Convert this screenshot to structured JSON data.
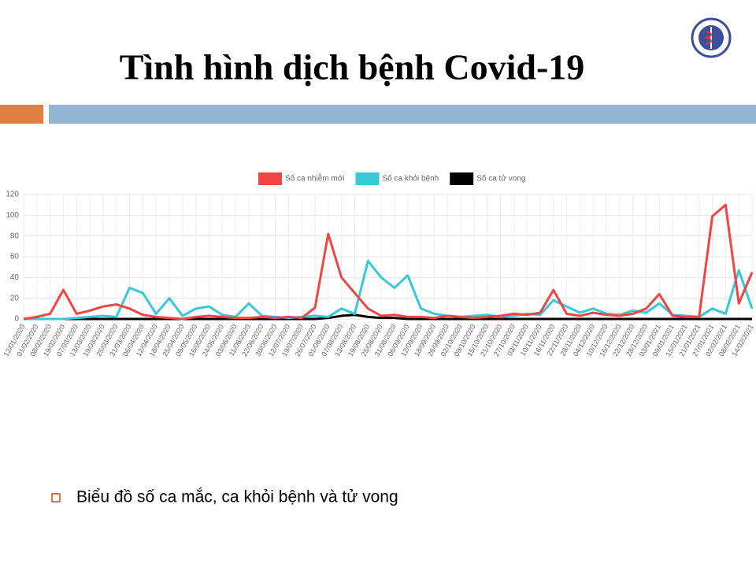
{
  "title": "Tình hình dịch bệnh Covid-19",
  "bullet": "Biểu đồ số ca mắc, ca khỏi bệnh và tử vong",
  "chart_data": {
    "type": "line",
    "categories": [
      "12/01/2020",
      "01/02/2020",
      "08/02/2020",
      "19/02/2020",
      "07/03/2020",
      "13/03/2020",
      "19/03/2020",
      "25/03/2020",
      "31/03/2020",
      "06/04/2020",
      "12/04/2020",
      "18/04/2020",
      "25/04/2020",
      "09/05/2020",
      "16/05/2020",
      "24/05/2020",
      "03/06/2020",
      "11/06/2020",
      "22/06/2020",
      "30/06/2020",
      "12/07/2020",
      "19/07/2020",
      "26/07/2020",
      "01/08/2020",
      "07/08/2020",
      "13/08/2020",
      "19/08/2020",
      "25/08/2020",
      "31/08/2020",
      "06/09/2020",
      "12/09/2020",
      "18/09/2020",
      "26/09/2020",
      "02/10/2020",
      "09/10/2020",
      "15/10/2020",
      "21/10/2020",
      "27/10/2020",
      "03/11/2020",
      "10/11/2020",
      "16/11/2020",
      "22/11/2020",
      "28/11/2020",
      "04/12/2020",
      "10/12/2020",
      "16/12/2020",
      "22/12/2020",
      "28/12/2020",
      "03/01/2021",
      "09/01/2021",
      "15/01/2021",
      "21/01/2021",
      "27/01/2021",
      "02/02/2021",
      "08/02/2021",
      "14/02/2021"
    ],
    "series": [
      {
        "name": "Số ca nhiễm mới",
        "color": "#f04545",
        "values": [
          0,
          2,
          5,
          28,
          5,
          8,
          12,
          14,
          10,
          4,
          2,
          1,
          0,
          2,
          3,
          2,
          1,
          1,
          2,
          1,
          2,
          1,
          11,
          82,
          40,
          25,
          10,
          3,
          4,
          2,
          2,
          1,
          3,
          2,
          1,
          2,
          3,
          5,
          4,
          6,
          28,
          5,
          3,
          6,
          4,
          3,
          5,
          10,
          24,
          3,
          2,
          2,
          99,
          110,
          15,
          45
        ]
      },
      {
        "name": "Số ca khỏi bệnh",
        "color": "#38c8d8",
        "values": [
          0,
          0,
          0,
          0,
          1,
          2,
          3,
          2,
          30,
          25,
          5,
          20,
          3,
          10,
          12,
          4,
          2,
          15,
          3,
          2,
          1,
          2,
          3,
          2,
          10,
          5,
          56,
          40,
          30,
          42,
          10,
          5,
          3,
          2,
          3,
          4,
          2,
          3,
          5,
          4,
          18,
          12,
          6,
          10,
          5,
          4,
          8,
          6,
          15,
          4,
          3,
          2,
          10,
          5,
          47,
          10
        ]
      },
      {
        "name": "Số ca tử vong",
        "color": "#000000",
        "values": [
          0,
          0,
          0,
          0,
          0,
          0,
          0,
          0,
          0,
          0,
          0,
          0,
          0,
          0,
          0,
          0,
          0,
          0,
          0,
          0,
          0,
          0,
          0,
          1,
          3,
          4,
          2,
          1,
          1,
          0,
          0,
          0,
          0,
          0,
          0,
          0,
          0,
          0,
          0,
          0,
          0,
          0,
          0,
          0,
          0,
          0,
          0,
          0,
          0,
          0,
          0,
          0,
          0,
          0,
          0,
          0
        ]
      }
    ],
    "ylim": [
      0,
      120
    ],
    "yticks": [
      0,
      20,
      40,
      60,
      80,
      100,
      120
    ],
    "grid": true
  }
}
